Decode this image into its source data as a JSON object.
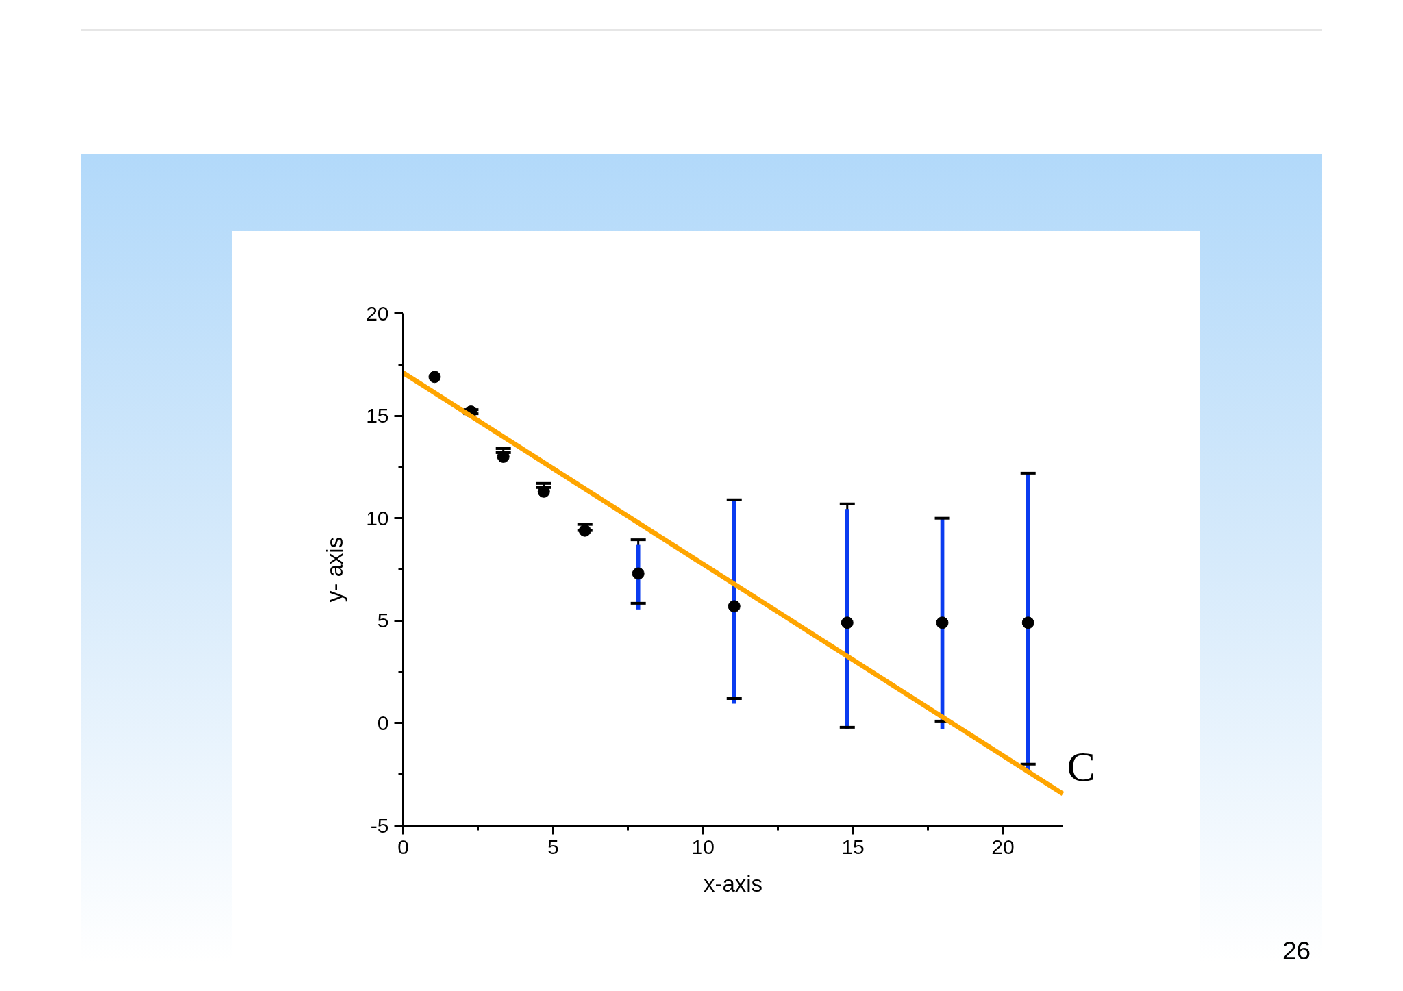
{
  "chart_data": {
    "type": "scatter",
    "xlabel": "x-axis",
    "ylabel": "y- axis",
    "xlim": [
      0,
      22
    ],
    "ylim": [
      -5,
      20
    ],
    "xticks": [
      0,
      {
        "value": 2.5,
        "label": null
      },
      5,
      {
        "value": 7.5,
        "label": null
      },
      10,
      {
        "value": 12.5,
        "label": null
      },
      15,
      {
        "value": 17.5,
        "label": null
      },
      20
    ],
    "yticks": [
      -5,
      {
        "value": -2.5,
        "label": null
      },
      0,
      {
        "value": 2.5,
        "label": null
      },
      5,
      {
        "value": 7.5,
        "label": null
      },
      10,
      {
        "value": 12.5,
        "label": null
      },
      15,
      {
        "value": 17.5,
        "label": null
      },
      20
    ],
    "grid": false,
    "legend": false,
    "annotations": [
      "26"
    ],
    "series": [
      {
        "type": "bar",
        "color": "#0a3cf0",
        "x": [
          7.84,
          11.04,
          14.81,
          17.98,
          20.84
        ],
        "base": [
          5.55,
          0.95,
          -0.3,
          -0.3,
          -2.3
        ],
        "values": [
          3.15,
          9.95,
          10.75,
          10.3,
          14.5
        ]
      },
      {
        "color": "#000000",
        "marker": "circle",
        "x": [
          1.05,
          2.26,
          3.34,
          4.69,
          6.06,
          7.84,
          11.04,
          14.81,
          17.98,
          20.84
        ],
        "values": [
          16.9,
          15.2,
          13.0,
          11.3,
          9.4,
          7.3,
          5.7,
          4.9,
          4.9,
          4.9
        ],
        "errors": [
          null,
          [
            15.1,
            15.3
          ],
          [
            13.2,
            13.4
          ],
          [
            11.5,
            11.7
          ],
          [
            9.4,
            9.7
          ],
          [
            5.85,
            8.95
          ],
          [
            1.2,
            10.9
          ],
          [
            -0.2,
            10.7
          ],
          [
            0.1,
            10.0
          ],
          [
            -2.0,
            12.2
          ]
        ]
      },
      {
        "type": "line",
        "name": "C",
        "color": "#ffa500",
        "x": [
          0,
          22
        ],
        "values": [
          17.1,
          -3.45
        ]
      }
    ]
  }
}
